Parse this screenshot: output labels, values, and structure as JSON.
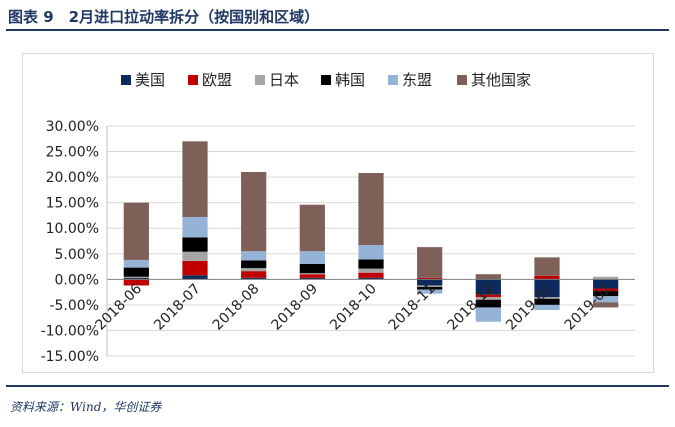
{
  "figure": {
    "title": "图表 9　2月进口拉动率拆分（按国别和区域）",
    "source": "资料来源：Wind，华创证券"
  },
  "chart_data": {
    "type": "bar",
    "stacked": true,
    "categories": [
      "2018-06",
      "2018-07",
      "2018-08",
      "2018-09",
      "2018-10",
      "2018-11",
      "2018-12",
      "2019-01",
      "2019-02"
    ],
    "ylim": [
      -15,
      30
    ],
    "yticks": [
      30,
      25,
      20,
      15,
      10,
      5,
      0,
      -5,
      -10,
      -15
    ],
    "ytick_labels": [
      "30.00%",
      "25.00%",
      "20.00%",
      "15.00%",
      "10.00%",
      "5.00%",
      "0.00%",
      "-5.00%",
      "-10.00%",
      "-15.00%"
    ],
    "grid": true,
    "legend_position": "top",
    "series": [
      {
        "name": "美国",
        "color": "#0d2a5e",
        "values": [
          0.3,
          0.8,
          0.3,
          0.3,
          0.3,
          -1.2,
          -3.0,
          -3.5,
          -1.8
        ]
      },
      {
        "name": "欧盟",
        "color": "#c00000",
        "values": [
          -1.2,
          2.8,
          1.3,
          0.7,
          1.0,
          0.3,
          -0.5,
          0.7,
          -0.5
        ]
      },
      {
        "name": "日本",
        "color": "#a6a6a6",
        "values": [
          0.2,
          1.8,
          0.6,
          0.2,
          0.8,
          -0.3,
          -0.5,
          -0.3,
          0.5
        ]
      },
      {
        "name": "韩国",
        "color": "#000000",
        "values": [
          1.8,
          2.8,
          1.5,
          1.8,
          1.8,
          -0.5,
          -1.5,
          -1.2,
          -1.0
        ]
      },
      {
        "name": "东盟",
        "color": "#95b3d7",
        "values": [
          1.5,
          4.0,
          1.8,
          2.5,
          2.8,
          -0.8,
          -2.8,
          -1.0,
          -1.2
        ]
      },
      {
        "name": "其他国家",
        "color": "#7f6058",
        "values": [
          11.2,
          14.8,
          15.5,
          9.1,
          14.1,
          6.0,
          1.0,
          3.6,
          -1.0
        ]
      }
    ]
  }
}
